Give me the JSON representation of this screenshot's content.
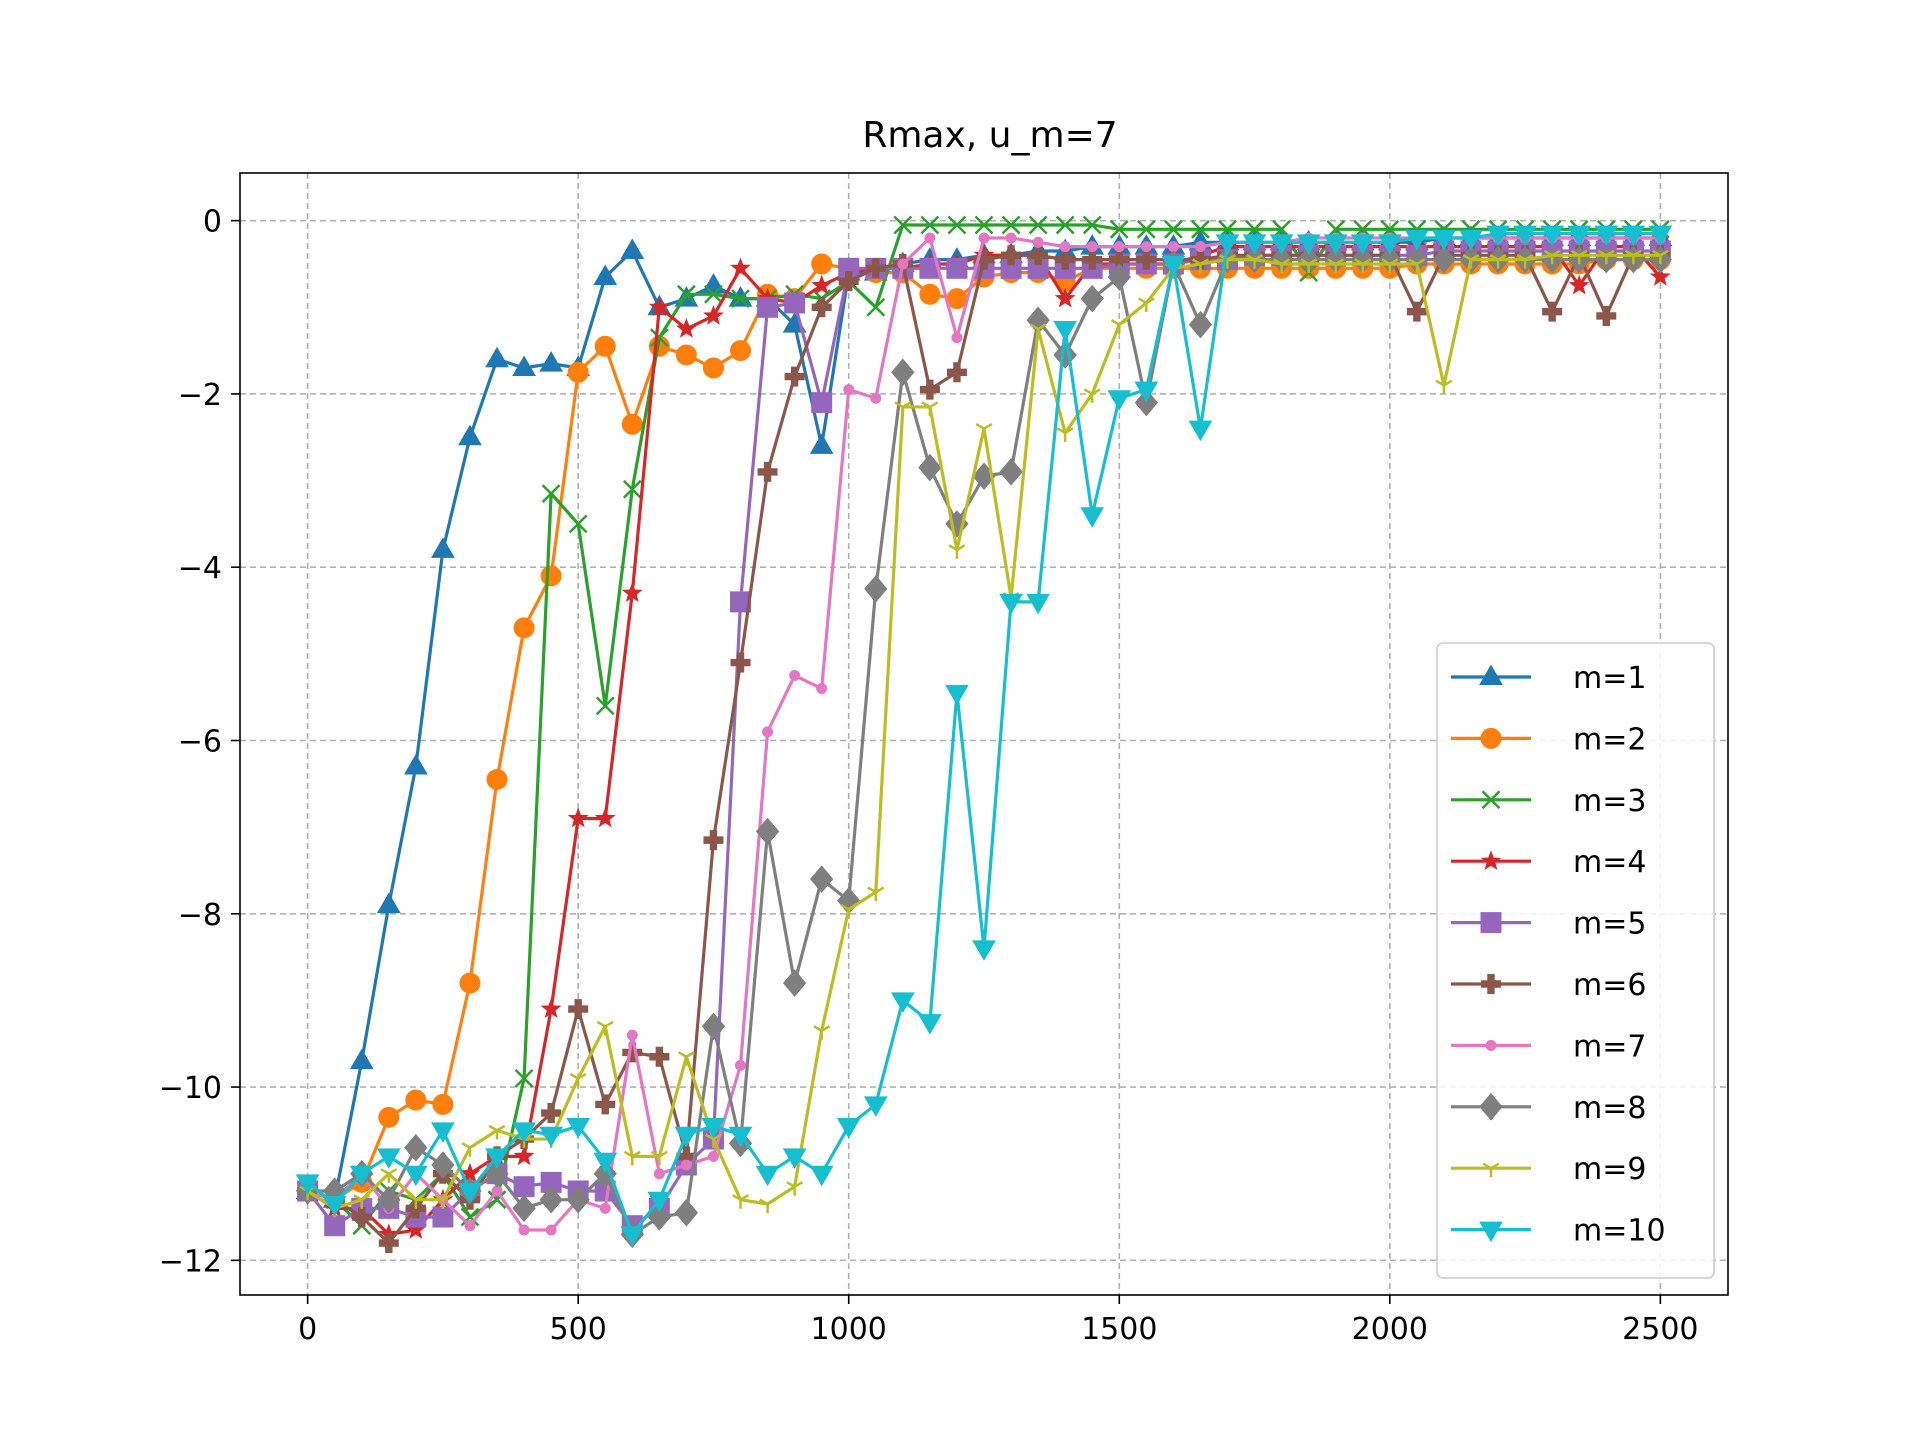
{
  "chart_data": {
    "type": "line",
    "title": "Rmax, u_m=7",
    "xlabel": "",
    "ylabel": "",
    "xlim": [
      -125,
      2625
    ],
    "ylim": [
      -12.4,
      0.55
    ],
    "xticks": [
      0,
      500,
      1000,
      1500,
      2000,
      2500
    ],
    "xtick_labels": [
      "0",
      "500",
      "1000",
      "1500",
      "2000",
      "2500"
    ],
    "yticks": [
      0,
      -2,
      -4,
      -6,
      -8,
      -10,
      -12
    ],
    "ytick_labels": [
      "0",
      "−2",
      "−4",
      "−6",
      "−8",
      "−10",
      "−12"
    ],
    "grid": true,
    "legend_position": "lower-right",
    "x": [
      0,
      50,
      100,
      150,
      200,
      250,
      300,
      350,
      400,
      450,
      500,
      550,
      600,
      650,
      700,
      750,
      800,
      850,
      900,
      950,
      1000,
      1050,
      1100,
      1150,
      1200,
      1250,
      1300,
      1350,
      1400,
      1450,
      1500,
      1550,
      1600,
      1650,
      1700,
      1750,
      1800,
      1850,
      1900,
      1950,
      2000,
      2050,
      2100,
      2150,
      2200,
      2250,
      2300,
      2350,
      2400,
      2450,
      2500
    ],
    "series": [
      {
        "name": "m=1",
        "color": "#1f77b4",
        "marker": "triangle-up",
        "values": [
          -11.2,
          -11.3,
          -9.7,
          -7.9,
          -6.3,
          -3.8,
          -2.5,
          -1.6,
          -1.7,
          -1.65,
          -1.7,
          -0.65,
          -0.35,
          -1.0,
          -0.9,
          -0.75,
          -0.9,
          -0.9,
          -1.2,
          -2.6,
          -0.6,
          -0.6,
          -0.5,
          -0.45,
          -0.45,
          -0.4,
          -0.4,
          -0.35,
          -0.35,
          -0.3,
          -0.3,
          -0.3,
          -0.3,
          -0.25,
          -0.25,
          -0.25,
          -0.25,
          -0.25,
          -0.25,
          -0.25,
          -0.25,
          -0.25,
          -0.2,
          -0.2,
          -0.2,
          -0.2,
          -0.2,
          -0.2,
          -0.2,
          -0.2,
          -0.2
        ]
      },
      {
        "name": "m=2",
        "color": "#ff7f0e",
        "marker": "circle",
        "values": [
          -11.2,
          -11.3,
          -11.1,
          -10.35,
          -10.15,
          -10.2,
          -8.8,
          -6.45,
          -4.7,
          -4.1,
          -1.75,
          -1.45,
          -2.35,
          -1.45,
          -1.55,
          -1.7,
          -1.5,
          -0.85,
          -0.9,
          -0.5,
          -0.55,
          -0.6,
          -0.6,
          -0.85,
          -0.9,
          -0.65,
          -0.6,
          -0.6,
          -0.7,
          -0.55,
          -0.55,
          -0.55,
          -0.55,
          -0.55,
          -0.55,
          -0.55,
          -0.55,
          -0.55,
          -0.55,
          -0.55,
          -0.55,
          -0.5,
          -0.5,
          -0.5,
          -0.5,
          -0.5,
          -0.5,
          -0.5,
          -0.45,
          -0.45,
          -0.45
        ]
      },
      {
        "name": "m=3",
        "color": "#2ca02c",
        "marker": "x",
        "values": [
          -11.2,
          -11.3,
          -11.6,
          -11.2,
          -11.3,
          -11.0,
          -11.5,
          -11.3,
          -9.9,
          -3.15,
          -3.5,
          -5.6,
          -3.1,
          -1.35,
          -0.85,
          -0.85,
          -0.9,
          -0.9,
          -0.85,
          -0.9,
          -0.7,
          -1.0,
          -0.05,
          -0.05,
          -0.05,
          -0.05,
          -0.05,
          -0.05,
          -0.05,
          -0.05,
          -0.1,
          -0.1,
          -0.1,
          -0.1,
          -0.1,
          -0.1,
          -0.1,
          -0.6,
          -0.1,
          -0.1,
          -0.1,
          -0.1,
          -0.1,
          -0.1,
          -0.1,
          -0.1,
          -0.1,
          -0.1,
          -0.1,
          -0.1,
          -0.1
        ]
      },
      {
        "name": "m=4",
        "color": "#d62728",
        "marker": "star",
        "values": [
          -11.2,
          -11.4,
          -11.4,
          -11.7,
          -11.65,
          -11.3,
          -11.0,
          -10.8,
          -10.8,
          -9.1,
          -6.9,
          -6.9,
          -4.3,
          -1.0,
          -1.25,
          -1.1,
          -0.55,
          -0.9,
          -0.95,
          -0.75,
          -0.6,
          -0.55,
          -0.55,
          -0.5,
          -0.5,
          -0.4,
          -0.4,
          -0.4,
          -0.9,
          -0.5,
          -0.5,
          -0.5,
          -0.5,
          -0.4,
          -0.3,
          -0.3,
          -0.3,
          -0.3,
          -0.3,
          -0.3,
          -0.3,
          -0.3,
          -0.3,
          -0.3,
          -0.3,
          -0.3,
          -0.3,
          -0.75,
          -0.3,
          -0.3,
          -0.65
        ]
      },
      {
        "name": "m=5",
        "color": "#9467bd",
        "marker": "square",
        "values": [
          -11.2,
          -11.6,
          -11.4,
          -11.4,
          -11.5,
          -11.5,
          -11.2,
          -11.0,
          -11.15,
          -11.1,
          -11.2,
          -11.2,
          -11.6,
          -11.4,
          -10.9,
          -10.6,
          -4.4,
          -1.0,
          -0.95,
          -2.1,
          -0.55,
          -0.55,
          -0.55,
          -0.55,
          -0.55,
          -0.55,
          -0.55,
          -0.55,
          -0.55,
          -0.55,
          -0.5,
          -0.5,
          -0.5,
          -0.45,
          -0.45,
          -0.4,
          -0.4,
          -0.4,
          -0.4,
          -0.4,
          -0.4,
          -0.4,
          -0.35,
          -0.35,
          -0.35,
          -0.35,
          -0.35,
          -0.35,
          -0.35,
          -0.35,
          -0.35
        ]
      },
      {
        "name": "m=6",
        "color": "#8c564b",
        "marker": "plus",
        "values": [
          -11.2,
          -11.3,
          -11.5,
          -11.8,
          -11.4,
          -11.0,
          -11.3,
          -10.8,
          -10.6,
          -10.3,
          -9.1,
          -10.2,
          -9.6,
          -9.65,
          -10.8,
          -7.15,
          -5.1,
          -2.9,
          -1.8,
          -1.0,
          -0.7,
          -0.55,
          -0.5,
          -1.95,
          -1.75,
          -0.45,
          -0.4,
          -0.4,
          -0.45,
          -0.45,
          -0.45,
          -0.45,
          -0.45,
          -0.45,
          -0.4,
          -0.4,
          -0.4,
          -0.4,
          -0.4,
          -0.4,
          -0.4,
          -1.05,
          -0.4,
          -0.4,
          -0.4,
          -0.4,
          -1.05,
          -0.4,
          -1.1,
          -0.4,
          -0.4
        ]
      },
      {
        "name": "m=7",
        "color": "#e377c2",
        "marker": "point",
        "values": [
          -11.2,
          -11.3,
          -11.0,
          -11.4,
          -11.0,
          -11.3,
          -11.6,
          -11.2,
          -11.65,
          -11.65,
          -11.3,
          -11.4,
          -9.4,
          -11.0,
          -10.9,
          -10.8,
          -9.75,
          -5.9,
          -5.25,
          -5.4,
          -1.95,
          -2.05,
          -0.5,
          -0.2,
          -1.35,
          -0.2,
          -0.2,
          -0.25,
          -0.3,
          -0.3,
          -0.3,
          -0.3,
          -0.3,
          -0.3,
          -0.25,
          -0.25,
          -0.25,
          -0.2,
          -0.2,
          -0.2,
          -0.2,
          -0.2,
          -0.2,
          -0.2,
          -0.2,
          -0.2,
          -0.2,
          -0.2,
          -0.2,
          -0.2,
          -0.2
        ]
      },
      {
        "name": "m=8",
        "color": "#7f7f7f",
        "marker": "diamond",
        "values": [
          -11.2,
          -11.2,
          -11.0,
          -11.3,
          -10.7,
          -10.9,
          -11.2,
          -11.0,
          -11.4,
          -11.3,
          -11.3,
          -11.0,
          -11.7,
          -11.5,
          -11.45,
          -9.3,
          -10.65,
          -7.05,
          -8.8,
          -7.6,
          -7.85,
          -4.25,
          -1.75,
          -2.85,
          -3.5,
          -2.95,
          -2.9,
          -1.15,
          -1.55,
          -0.9,
          -0.65,
          -2.1,
          -0.5,
          -1.2,
          -0.45,
          -0.45,
          -0.45,
          -0.45,
          -0.45,
          -0.45,
          -0.45,
          -0.45,
          -0.45,
          -0.45,
          -0.45,
          -0.45,
          -0.45,
          -0.45,
          -0.45,
          -0.45,
          -0.45
        ]
      },
      {
        "name": "m=9",
        "color": "#bcbd22",
        "marker": "tri-down",
        "values": [
          -11.2,
          -11.4,
          -11.3,
          -11.0,
          -11.3,
          -11.3,
          -10.7,
          -10.5,
          -10.6,
          -10.6,
          -9.9,
          -9.3,
          -10.8,
          -10.8,
          -9.65,
          -10.6,
          -11.3,
          -11.35,
          -11.15,
          -9.35,
          -7.95,
          -7.75,
          -2.15,
          -2.15,
          -3.8,
          -2.4,
          -4.35,
          -1.25,
          -2.45,
          -2.0,
          -1.2,
          -0.95,
          -0.55,
          -0.5,
          -0.45,
          -0.45,
          -0.5,
          -0.5,
          -0.5,
          -0.5,
          -0.5,
          -0.5,
          -1.9,
          -0.45,
          -0.45,
          -0.45,
          -0.4,
          -0.4,
          -0.4,
          -0.4,
          -0.4
        ]
      },
      {
        "name": "m=10",
        "color": "#17becf",
        "marker": "triangle-down",
        "values": [
          -11.1,
          -11.35,
          -11.0,
          -10.8,
          -11.0,
          -10.5,
          -11.2,
          -10.8,
          -10.5,
          -10.55,
          -10.45,
          -10.85,
          -11.7,
          -11.3,
          -10.55,
          -10.45,
          -10.55,
          -11.0,
          -10.8,
          -11.0,
          -10.45,
          -10.2,
          -9.0,
          -9.25,
          -5.45,
          -8.4,
          -4.4,
          -4.4,
          -1.25,
          -3.4,
          -2.05,
          -1.95,
          -0.5,
          -2.4,
          -0.25,
          -0.25,
          -0.25,
          -0.25,
          -0.25,
          -0.25,
          -0.25,
          -0.2,
          -0.2,
          -0.2,
          -0.15,
          -0.15,
          -0.15,
          -0.15,
          -0.15,
          -0.15,
          -0.15
        ]
      }
    ]
  }
}
